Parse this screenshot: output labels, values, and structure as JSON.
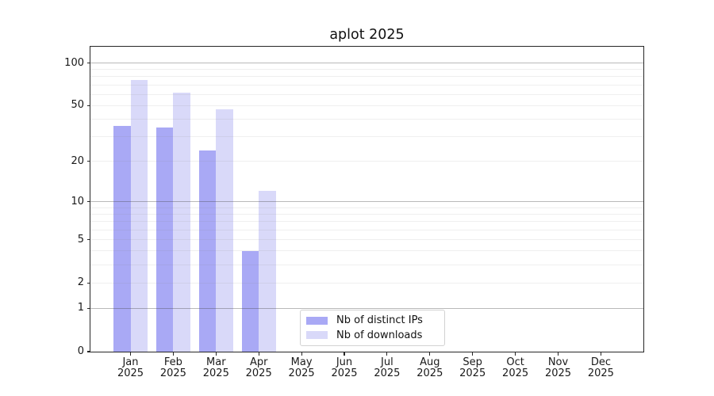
{
  "figure": {
    "background": "#ffffff"
  },
  "chart_data": {
    "type": "bar",
    "title": "aplot 2025",
    "x_categories": [
      "Jan",
      "Feb",
      "Mar",
      "Apr",
      "May",
      "Jun",
      "Jul",
      "Aug",
      "Sep",
      "Oct",
      "Nov",
      "Dec"
    ],
    "x_year": "2025",
    "series": [
      {
        "name": "Nb of distinct IPs",
        "color": "#a9a9f5",
        "values": [
          36,
          35,
          24,
          4,
          0,
          0,
          0,
          0,
          0,
          0,
          0,
          0
        ]
      },
      {
        "name": "Nb of downloads",
        "color": "#d9d9f9",
        "values": [
          76,
          62,
          47,
          12,
          0,
          0,
          0,
          0,
          0,
          0,
          0,
          0
        ]
      }
    ],
    "y_axis": {
      "scale": "log10(1+x)",
      "tick_values": [
        0,
        1,
        2,
        5,
        10,
        20,
        50,
        100
      ],
      "top_value": 130,
      "grid_major": [
        1,
        10,
        100
      ],
      "grid_minor": [
        2,
        3,
        4,
        5,
        6,
        7,
        8,
        9,
        20,
        30,
        40,
        50,
        60,
        70,
        80,
        90
      ]
    },
    "legend": {
      "position": "lower center"
    },
    "grid": true,
    "colors": {
      "axis": "#262626",
      "text": "#191919",
      "major_grid": "#bababa",
      "minor_grid": "#ededed",
      "legend_border": "#d2d2d2"
    }
  }
}
